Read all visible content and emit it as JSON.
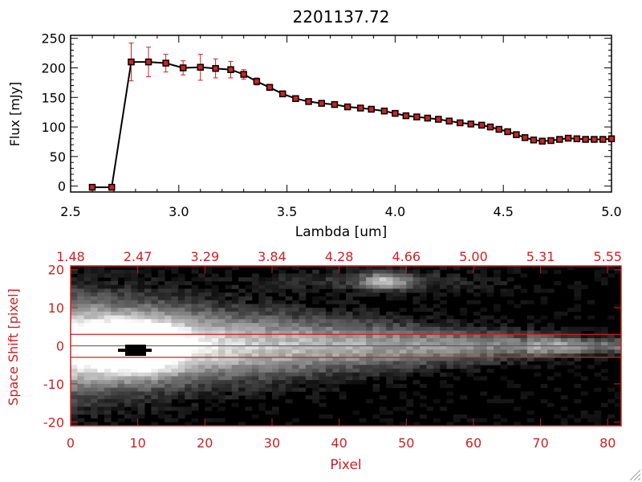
{
  "chart_data": [
    {
      "type": "line",
      "title": "2201137.72",
      "xlabel": "Lambda [um]",
      "ylabel": "Flux [mJy]",
      "xlim": [
        2.5,
        5.0
      ],
      "ylim": [
        -10,
        255
      ],
      "x_ticks": [
        "2.5",
        "3.0",
        "3.5",
        "4.0",
        "4.5",
        "5.0"
      ],
      "y_ticks": [
        "0",
        "50",
        "100",
        "150",
        "200",
        "250"
      ],
      "line_color": "#000000",
      "marker_color": "#cc2222",
      "error_color": "#cc2222",
      "series": [
        {
          "x": [
            2.6,
            2.69,
            2.78,
            2.86,
            2.94,
            3.02,
            3.1,
            3.17,
            3.24,
            3.3,
            3.36,
            3.42,
            3.48,
            3.54,
            3.6,
            3.66,
            3.72,
            3.78,
            3.84,
            3.89,
            3.95,
            4.0,
            4.05,
            4.1,
            4.15,
            4.2,
            4.25,
            4.3,
            4.35,
            4.4,
            4.44,
            4.48,
            4.52,
            4.56,
            4.6,
            4.64,
            4.68,
            4.72,
            4.76,
            4.8,
            4.84,
            4.88,
            4.92,
            4.96,
            5.0
          ],
          "y": [
            -2,
            -2,
            210,
            210,
            208,
            200,
            201,
            199,
            197,
            189,
            177,
            167,
            156,
            148,
            143,
            140,
            138,
            134,
            132,
            130,
            127,
            123,
            119,
            117,
            115,
            113,
            110,
            107,
            105,
            103,
            100,
            96,
            92,
            87,
            82,
            78,
            76,
            77,
            79,
            81,
            80,
            79,
            79,
            79,
            80
          ],
          "yerr": [
            0,
            0,
            32,
            25,
            15,
            12,
            22,
            16,
            14,
            8,
            6,
            4,
            3,
            3,
            3,
            2,
            2,
            2,
            2,
            2,
            2,
            2,
            2,
            2,
            2,
            2,
            2,
            2,
            2,
            2,
            2,
            2,
            2,
            2,
            2,
            2,
            2,
            2,
            2,
            2,
            2,
            2,
            2,
            2,
            2
          ]
        }
      ]
    },
    {
      "type": "heatmap",
      "xlabel": "Pixel",
      "ylabel": "Space Shift [pixel]",
      "xlim": [
        0,
        82
      ],
      "ylim": [
        -21,
        21
      ],
      "x_ticks": [
        "0",
        "10",
        "20",
        "30",
        "40",
        "50",
        "60",
        "70",
        "80"
      ],
      "y_ticks": [
        "-20",
        "-10",
        "0",
        "10",
        "20"
      ],
      "top_ticks": [
        "1.48",
        "2.47",
        "3.29",
        "3.84",
        "4.28",
        "4.66",
        "5.00",
        "5.31",
        "5.55"
      ],
      "aperture_rows": [
        3,
        -3
      ],
      "center_row": 0,
      "axis_color": "#cc2222",
      "colormap": "grayscale"
    }
  ]
}
